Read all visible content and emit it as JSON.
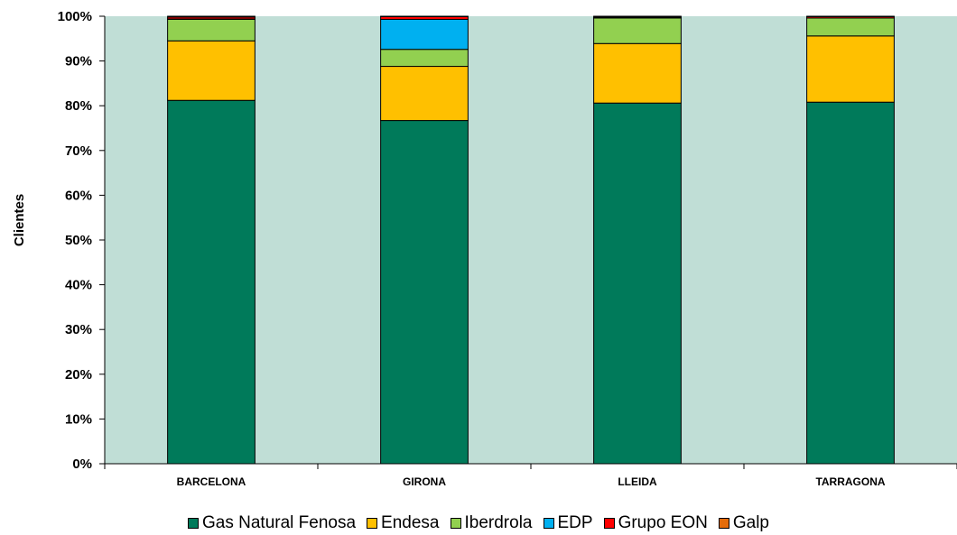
{
  "chart_data": {
    "type": "bar",
    "stacked": true,
    "percent": true,
    "categories": [
      "BARCELONA",
      "GIRONA",
      "LLEIDA",
      "TARRAGONA"
    ],
    "ylabel": "Clientes",
    "ylim": [
      0,
      100
    ],
    "yticks": [
      "0%",
      "10%",
      "20%",
      "30%",
      "40%",
      "50%",
      "60%",
      "70%",
      "80%",
      "90%",
      "100%"
    ],
    "grid": false,
    "legend_position": "bottom",
    "plot_background": "#c0ded6",
    "series": [
      {
        "name": "Gas Natural Fenosa",
        "color": "#007a5a",
        "values": [
          81.2,
          76.7,
          80.6,
          80.8
        ]
      },
      {
        "name": "Endesa",
        "color": "#ffc000",
        "values": [
          13.3,
          12.1,
          13.3,
          14.8
        ]
      },
      {
        "name": "Iberdrola",
        "color": "#92d050",
        "values": [
          4.8,
          3.8,
          5.7,
          4.0
        ]
      },
      {
        "name": "EDP",
        "color": "#00b0f0",
        "values": [
          0.1,
          6.7,
          0.0,
          0.0
        ]
      },
      {
        "name": "Grupo EON",
        "color": "#ff0000",
        "values": [
          0.4,
          0.6,
          0.2,
          0.3
        ]
      },
      {
        "name": "Galp",
        "color": "#e46c0a",
        "values": [
          0.2,
          0.1,
          0.2,
          0.1
        ]
      }
    ]
  }
}
